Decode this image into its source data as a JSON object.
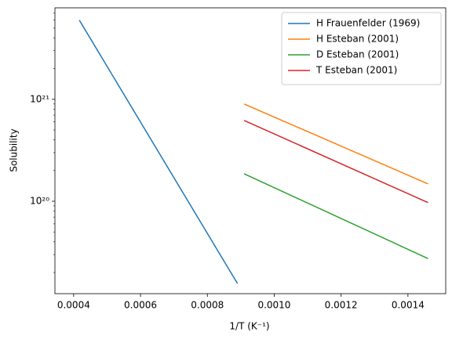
{
  "chart_data": {
    "type": "line",
    "log_y": true,
    "legend": "upper right",
    "xlabel": "1/T (K⁻¹)",
    "ylabel": "Solubility",
    "xlim": [
      0.000344,
      0.001513
    ],
    "ylim": [
      1.24e+19,
      7.9e+21
    ],
    "xticks": [
      {
        "value": 0.0004,
        "label": "0.0004"
      },
      {
        "value": 0.0006,
        "label": "0.0006"
      },
      {
        "value": 0.0008,
        "label": "0.0008"
      },
      {
        "value": 0.001,
        "label": "0.0010"
      },
      {
        "value": 0.0012,
        "label": "0.0012"
      },
      {
        "value": 0.0014,
        "label": "0.0014"
      }
    ],
    "yticks": [
      {
        "value": 1e+20,
        "label": "10²⁰"
      },
      {
        "value": 1e+21,
        "label": "10²¹"
      }
    ],
    "series": [
      {
        "name": "H Frauenfelder (1969)",
        "color": "#1f77b4",
        "x": [
          0.000417,
          0.00089
        ],
        "values": [
          5.98e+21,
          1.56e+19
        ]
      },
      {
        "name": "H Esteban (2001)",
        "color": "#ff7f0e",
        "x": [
          0.00091,
          0.00146
        ],
        "values": [
          9e+20,
          1.48e+20
        ]
      },
      {
        "name": "D Esteban (2001)",
        "color": "#2ca02c",
        "x": [
          0.00091,
          0.00146
        ],
        "values": [
          1.86e+20,
          2.74e+19
        ]
      },
      {
        "name": "T Esteban (2001)",
        "color": "#d62728",
        "x": [
          0.00091,
          0.00146
        ],
        "values": [
          6.2e+20,
          9.7e+19
        ]
      }
    ]
  }
}
